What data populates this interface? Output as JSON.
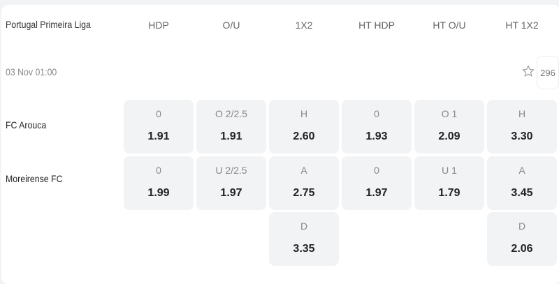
{
  "league": "Portugal Primeira Liga",
  "headers": [
    "HDP",
    "O/U",
    "1X2",
    "HT HDP",
    "HT O/U",
    "HT 1X2"
  ],
  "match": {
    "time": "03 Nov 01:00",
    "market_count": "296",
    "favorite_icon": "star-outline-icon"
  },
  "teams": [
    "FC Arouca",
    "Moreirense FC"
  ],
  "rows": [
    [
      {
        "l": "0",
        "o": "1.91"
      },
      {
        "l": "O 2/2.5",
        "o": "1.91"
      },
      {
        "l": "H",
        "o": "2.60"
      },
      {
        "l": "0",
        "o": "1.93"
      },
      {
        "l": "O 1",
        "o": "2.09"
      },
      {
        "l": "H",
        "o": "3.30"
      }
    ],
    [
      {
        "l": "0",
        "o": "1.99"
      },
      {
        "l": "U 2/2.5",
        "o": "1.97"
      },
      {
        "l": "A",
        "o": "2.75"
      },
      {
        "l": "0",
        "o": "1.97"
      },
      {
        "l": "U 1",
        "o": "1.79"
      },
      {
        "l": "A",
        "o": "3.45"
      }
    ],
    [
      null,
      null,
      {
        "l": "D",
        "o": "3.35"
      },
      null,
      null,
      {
        "l": "D",
        "o": "2.06"
      }
    ]
  ]
}
